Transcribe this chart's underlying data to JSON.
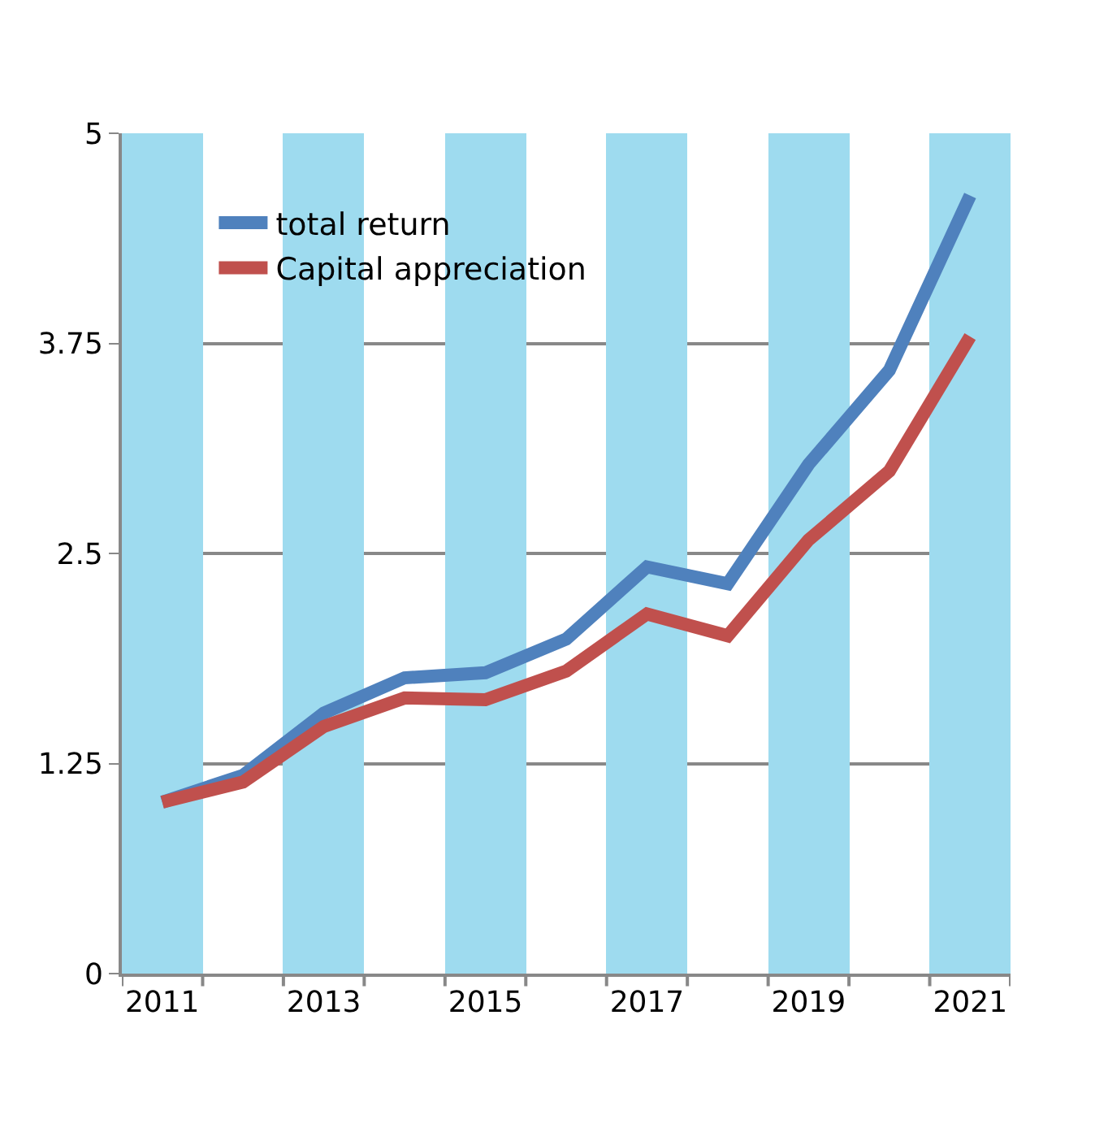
{
  "chart_data": {
    "type": "line",
    "categories": [
      "2011",
      null,
      "2013",
      null,
      "2015",
      null,
      "2017",
      null,
      "2019",
      null,
      "2021"
    ],
    "series": [
      {
        "type": "bar",
        "color": "#9edbef",
        "values": [
          5,
          null,
          5,
          null,
          5,
          null,
          5,
          null,
          5,
          null,
          5
        ]
      },
      {
        "name": "total return",
        "color": "#4f81bd",
        "values": [
          1.02,
          1.18,
          1.55,
          1.76,
          1.79,
          1.99,
          2.42,
          2.32,
          3.03,
          3.59,
          4.63
        ]
      },
      {
        "name": "Capital appreciation",
        "color": "#c0504d",
        "values": [
          1.02,
          1.14,
          1.47,
          1.64,
          1.63,
          1.8,
          2.14,
          2.01,
          2.58,
          2.99,
          3.79
        ]
      }
    ],
    "ylim": [
      0,
      5
    ],
    "yticks": [
      0,
      1.25,
      2.5,
      3.75,
      5
    ],
    "grid": "y",
    "legend": "top left",
    "marker": "none",
    "line_style": "solid"
  }
}
